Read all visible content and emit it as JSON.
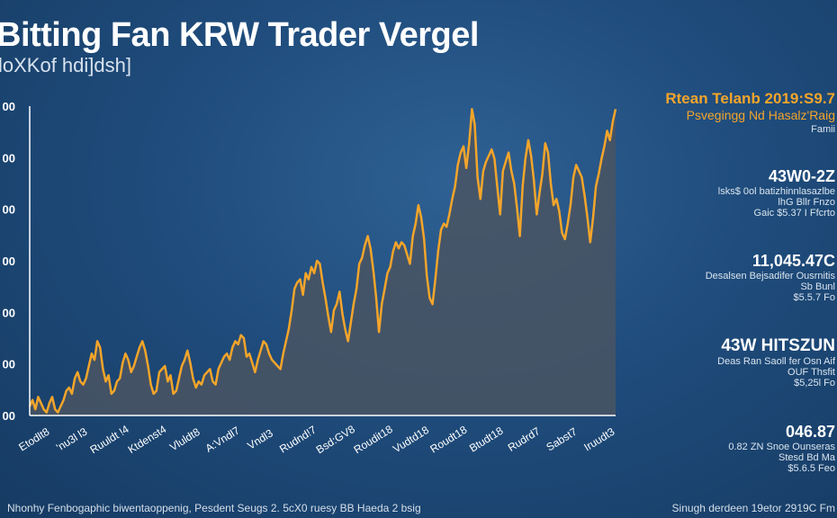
{
  "header": {
    "title": "Bitting Fan KRW Trader Vergel",
    "subtitle": "loXKof hdi]dsh]"
  },
  "colors": {
    "line": "#f4a52a",
    "area": "#4a5563",
    "axis": "#ffffff",
    "accent": "#f4a52a"
  },
  "chart_data": {
    "type": "area",
    "y_tick_labels": [
      "00",
      "00",
      "00",
      "00",
      "00",
      "00",
      "00"
    ],
    "x_tick_labels": [
      "Etodlt8",
      "'nu3l l3",
      "Ruuldt !4",
      "Ktdenst4",
      "Vluldt8",
      "A:Vndl7",
      "Vndl3",
      "Rudnd!7",
      "Bsd:GV8",
      "Roudit18",
      "Vudtd18",
      "Roudt18",
      "Btudt18",
      "Rudrd7",
      "Sabst7",
      "Iruudt3"
    ],
    "ylim": [
      0,
      100
    ],
    "values": [
      3,
      5,
      2,
      6,
      4,
      2,
      1,
      4,
      6,
      2,
      1,
      3,
      5,
      8,
      9,
      7,
      12,
      14,
      11,
      10,
      12,
      16,
      20,
      18,
      24,
      22,
      15,
      11,
      13,
      7,
      8,
      11,
      12,
      17,
      20,
      18,
      14,
      16,
      19,
      22,
      24,
      21,
      16,
      10,
      7,
      8,
      14,
      15,
      16,
      11,
      13,
      7,
      8,
      12,
      16,
      18,
      21,
      17,
      12,
      9,
      11,
      10,
      13,
      14,
      15,
      11,
      10,
      15,
      17,
      19,
      20,
      18,
      22,
      24,
      23,
      26,
      25,
      19,
      20,
      17,
      14,
      18,
      21,
      24,
      23,
      20,
      18,
      17,
      16,
      15,
      20,
      24,
      28,
      34,
      41,
      43,
      44,
      39,
      46,
      44,
      48,
      46,
      50,
      49,
      43,
      38,
      32,
      27,
      34,
      36,
      40,
      33,
      28,
      24,
      30,
      36,
      41,
      49,
      51,
      55,
      58,
      54,
      47,
      38,
      27,
      36,
      41,
      46,
      48,
      53,
      56,
      54,
      56,
      55,
      52,
      49,
      58,
      62,
      68,
      64,
      57,
      45,
      38,
      36,
      44,
      53,
      60,
      62,
      61,
      65,
      70,
      74,
      81,
      85,
      87,
      80,
      88,
      99,
      94,
      77,
      70,
      79,
      82,
      84,
      86,
      83,
      74,
      65,
      79,
      82,
      85,
      79,
      75,
      67,
      58,
      74,
      83,
      89,
      84,
      76,
      65,
      72,
      78,
      88,
      85,
      75,
      68,
      70,
      66,
      59,
      57,
      62,
      68,
      77,
      81,
      79,
      77,
      71,
      64,
      56,
      64,
      74,
      78,
      83,
      87,
      92,
      89,
      95,
      99
    ]
  },
  "side_panel": {
    "block1": {
      "line1": "Rtean Telanb 2019:S9.7",
      "line2": "Psvegingg Nd Hasalz'Raig",
      "line3": "Famii"
    },
    "block2": {
      "value": "43W0-2Z",
      "line1": "lsks$ 0ol batizhinnlasazlbe",
      "line2": "lhG Bllr Fnzo",
      "line3": "Gaic $5.37 I Ffcrto"
    },
    "block3": {
      "value": "11,045.47C",
      "line1": "Desalsen Bejsadifer Ousrnitis",
      "line2": "Sb Bunl",
      "line3": "$5.5.7 Fo"
    },
    "block4": {
      "value": "43W HITSZUN",
      "line1": "Deas Ran Saoll fer Osn Aif",
      "line2": "OUF Thsfit",
      "line3": "$5,25l Fo"
    },
    "block5": {
      "value": "046.87",
      "line1": "0.82 ZN Snoe Ounseras",
      "line2": "Stesd Bd Ma",
      "line3": "$5.6.5 Feo"
    }
  },
  "footer": {
    "left": "Nhonhy Fenbogaphic biwentaoppenig, Pesdent Seugs 2. 5cX0 ruesy BB Haeda 2 bsig",
    "right": "Sinugh derdeen 19etor 2919C Fm"
  }
}
